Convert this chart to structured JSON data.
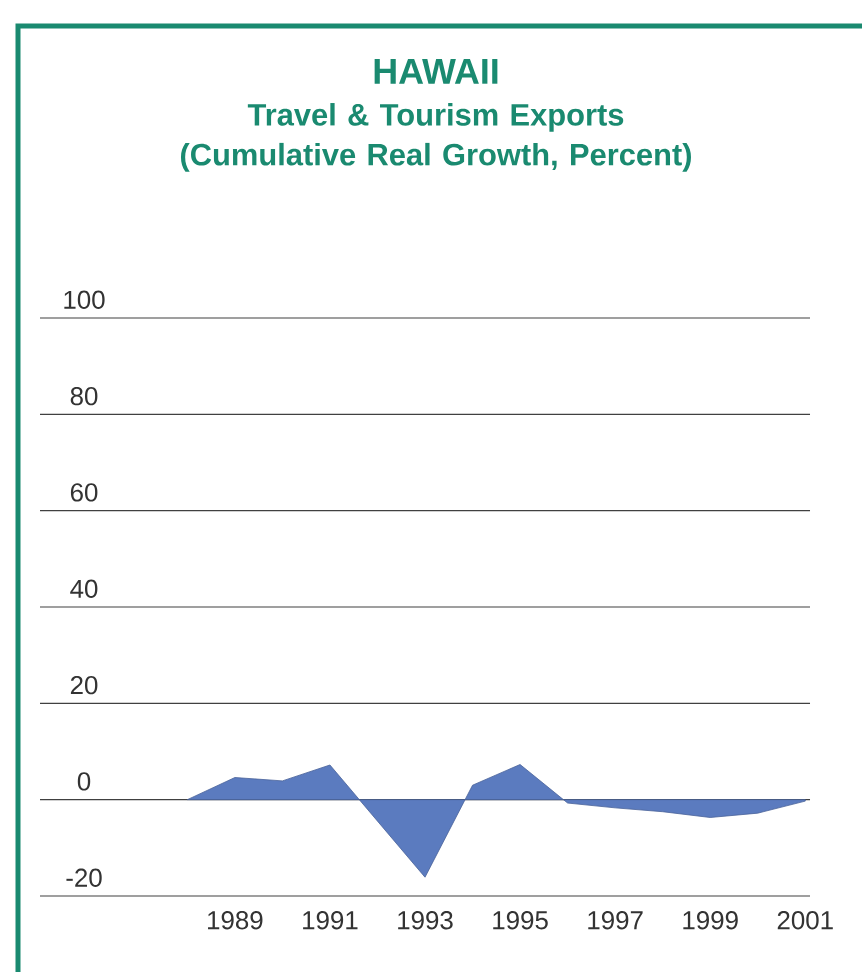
{
  "chart_data": {
    "type": "area",
    "title": "HAWAII",
    "subtitle": "Travel & Tourism Exports (Cumulative Real Growth, Percent)",
    "x": [
      1988,
      1989,
      1990,
      1991,
      1993,
      1994,
      1995,
      1996,
      1997,
      1998,
      1999,
      2000,
      2001
    ],
    "values": [
      0,
      4.6,
      3.9,
      7.2,
      -16.1,
      3.0,
      7.3,
      -0.7,
      -1.7,
      -2.5,
      -3.7,
      -2.8,
      -0.3
    ],
    "color": "#5b7bbf",
    "xlim": [
      1984.9,
      2001.1
    ],
    "ylim": [
      -20,
      100
    ],
    "xticks": [
      1989,
      1991,
      1993,
      1995,
      1997,
      1999,
      2001
    ],
    "yticks": [
      -20,
      0,
      20,
      40,
      60,
      80,
      100
    ],
    "grid": "y"
  }
}
